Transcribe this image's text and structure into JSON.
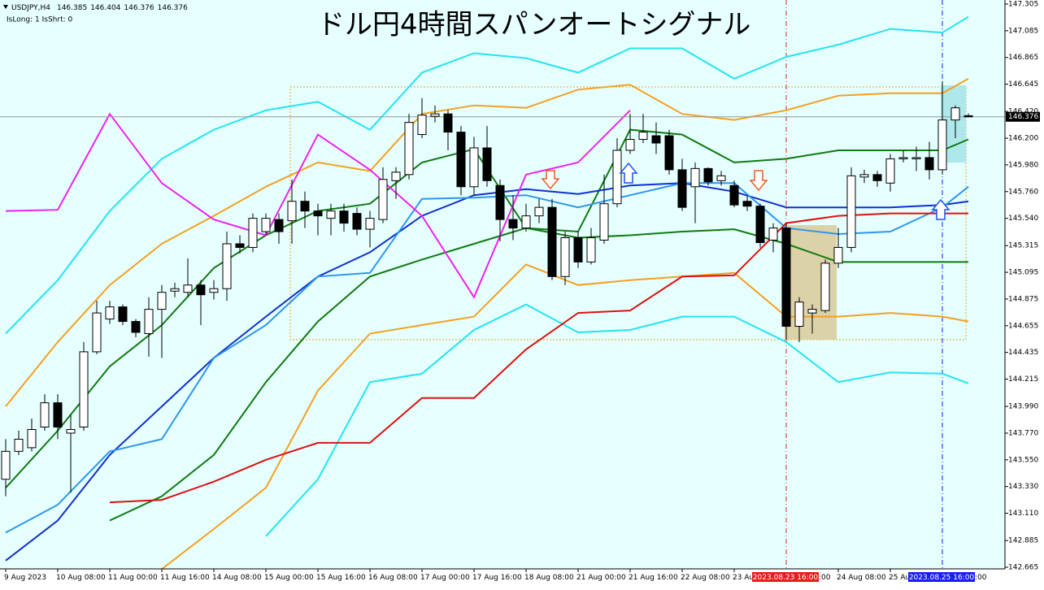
{
  "chart_data": {
    "type": "candlestick",
    "symbol": "USDJPY,H4",
    "status": "IsLong: 1 IsShrt: 0",
    "title": "ドル円4時間スパンオートシグナル",
    "categories": [
      "9 Aug 2023",
      null,
      null,
      null,
      "10 Aug 08:00",
      null,
      null,
      null,
      "11 Aug 00:00",
      null,
      null,
      null,
      "11 Aug 16:00",
      null,
      null,
      null,
      "14 Aug 08:00",
      null,
      null,
      null,
      "15 Aug 00:00",
      null,
      null,
      null,
      "15 Aug 16:00",
      null,
      null,
      null,
      "16 Aug 08:00",
      null,
      null,
      null,
      "17 Aug 00:00",
      null,
      null,
      null,
      "17 Aug 16:00",
      null,
      null,
      null,
      "18 Aug 08:00",
      null,
      null,
      null,
      "21 Aug 00:00",
      null,
      null,
      null,
      "21 Aug 16:00",
      null,
      null,
      null,
      "22 Aug 08:00",
      null,
      null,
      null,
      "23 Au",
      null,
      null,
      null,
      "2023.08.23 16:00",
      null,
      null,
      null,
      "24 Aug 08:00",
      null,
      null,
      null,
      "25 Au",
      null,
      null,
      null,
      "2023.08.25 16:00",
      null,
      null
    ],
    "vlines": [
      {
        "at": 60,
        "color": "#e81c1c"
      },
      {
        "at": 72,
        "color": "#1a1aff"
      }
    ],
    "tails": [
      ":00",
      ":00"
    ],
    "open": [
      143.39,
      143.62,
      143.65,
      143.82,
      144.02,
      143.77,
      143.82,
      144.44,
      144.71,
      144.81,
      144.69,
      144.59,
      144.79,
      144.94,
      144.93,
      144.99,
      144.93,
      144.96,
      145.33,
      145.3,
      145.43,
      145.53,
      145.52,
      145.68,
      145.6,
      145.54,
      145.6,
      145.58,
      145.45,
      145.53,
      145.85,
      145.9,
      146.23,
      146.38,
      146.4,
      146.25,
      145.8,
      146.12,
      145.81,
      145.53,
      145.46,
      145.56,
      145.63,
      145.06,
      145.38,
      145.18,
      145.36,
      145.66,
      146.1,
      146.19,
      146.22,
      146.22,
      145.94,
      145.8,
      145.95,
      145.85,
      145.81,
      145.68,
      145.64,
      145.36,
      145.46,
      144.65,
      144.76,
      144.78,
      145.17,
      145.3,
      145.88,
      145.9,
      145.83,
      146.03,
      146.03,
      146.04,
      145.94,
      146.35,
      146.385
    ],
    "high": [
      143.72,
      143.79,
      143.89,
      144.09,
      144.09,
      143.92,
      144.52,
      144.86,
      144.86,
      144.83,
      144.71,
      144.89,
      144.99,
      145.01,
      145.21,
      145.03,
      145.03,
      145.43,
      145.4,
      145.58,
      145.58,
      145.58,
      145.86,
      145.76,
      145.66,
      145.66,
      145.66,
      145.63,
      145.6,
      145.96,
      145.96,
      146.4,
      146.53,
      146.47,
      146.43,
      146.3,
      146.21,
      146.3,
      145.86,
      145.73,
      145.66,
      145.7,
      145.7,
      145.43,
      145.43,
      145.46,
      145.9,
      146.2,
      146.4,
      146.4,
      146.33,
      146.27,
      146.03,
      146.0,
      145.96,
      145.93,
      145.85,
      145.73,
      145.66,
      145.5,
      145.5,
      144.89,
      144.83,
      145.2,
      145.46,
      145.96,
      145.94,
      145.93,
      146.07,
      146.1,
      146.13,
      146.17,
      146.67,
      146.47,
      146.404
    ],
    "low": [
      143.25,
      143.59,
      143.62,
      143.79,
      143.72,
      143.28,
      143.79,
      144.42,
      144.67,
      144.66,
      144.56,
      144.4,
      144.39,
      144.89,
      144.89,
      144.66,
      144.87,
      144.86,
      145.25,
      145.26,
      145.4,
      145.33,
      145.33,
      145.46,
      145.4,
      145.4,
      145.43,
      145.4,
      145.3,
      145.5,
      145.7,
      145.86,
      146.2,
      146.33,
      146.1,
      145.73,
      145.73,
      145.8,
      145.35,
      145.36,
      145.43,
      145.5,
      145.03,
      144.99,
      145.13,
      145.16,
      145.33,
      145.63,
      146.07,
      146.16,
      146.07,
      145.9,
      145.6,
      145.5,
      145.81,
      145.81,
      145.63,
      145.6,
      145.3,
      145.26,
      144.54,
      144.52,
      144.59,
      144.76,
      145.13,
      145.26,
      145.83,
      145.8,
      145.76,
      146.0,
      145.93,
      145.86,
      145.9,
      146.2,
      146.376
    ],
    "close": [
      143.62,
      143.72,
      143.8,
      144.02,
      143.82,
      143.8,
      144.44,
      144.76,
      144.81,
      144.69,
      144.6,
      144.79,
      144.93,
      144.96,
      144.99,
      144.91,
      144.96,
      145.33,
      145.3,
      145.54,
      145.54,
      145.43,
      145.68,
      145.6,
      145.56,
      145.6,
      145.5,
      145.45,
      145.54,
      145.86,
      145.92,
      146.33,
      146.39,
      146.4,
      146.25,
      145.8,
      146.12,
      145.85,
      145.53,
      145.46,
      145.56,
      145.63,
      145.06,
      145.38,
      145.18,
      145.38,
      145.66,
      146.1,
      146.19,
      146.25,
      146.16,
      145.94,
      145.63,
      145.95,
      145.84,
      145.89,
      145.65,
      145.64,
      145.34,
      145.46,
      144.65,
      144.85,
      144.79,
      145.17,
      145.3,
      145.89,
      145.9,
      145.85,
      146.03,
      146.04,
      146.04,
      145.94,
      146.35,
      146.45,
      146.376
    ],
    "up_color": "#ffffff",
    "down_color": "#000000",
    "series": [
      {
        "color": "#22e5f0",
        "x": [
          0,
          4,
          8,
          12,
          16,
          20,
          24,
          28,
          32,
          36,
          40,
          44,
          48,
          52,
          56,
          60,
          64,
          68,
          72,
          74
        ],
        "values": [
          144.59,
          145.03,
          145.6,
          146.03,
          146.27,
          146.43,
          146.5,
          146.27,
          146.74,
          146.9,
          146.86,
          146.74,
          146.94,
          146.94,
          146.69,
          146.87,
          146.97,
          147.1,
          147.07,
          147.2
        ]
      },
      {
        "color": "#22e5f0",
        "x": [
          0,
          4,
          8,
          12,
          16,
          20,
          24,
          28,
          32,
          36,
          40,
          44,
          48,
          52,
          56,
          60,
          64,
          68,
          72,
          74
        ],
        "values": [
          null,
          null,
          null,
          null,
          null,
          142.92,
          143.39,
          144.19,
          144.26,
          144.62,
          144.83,
          144.6,
          144.62,
          144.73,
          144.73,
          144.52,
          144.19,
          144.27,
          144.26,
          144.18
        ]
      },
      {
        "color": "#f5a020",
        "x": [
          0,
          4,
          8,
          12,
          16,
          20,
          24,
          28,
          32,
          36,
          40,
          44,
          48,
          52,
          56,
          60,
          64,
          68,
          72,
          74
        ],
        "values": [
          143.99,
          144.52,
          144.99,
          145.33,
          145.56,
          145.8,
          146.0,
          145.93,
          146.4,
          146.47,
          146.45,
          146.6,
          146.64,
          146.4,
          146.35,
          146.43,
          146.55,
          146.57,
          146.57,
          146.69
        ]
      },
      {
        "color": "#f5a020",
        "x": [
          0,
          4,
          8,
          12,
          16,
          20,
          24,
          28,
          32,
          36,
          40,
          44,
          48,
          52,
          56,
          60,
          64,
          68,
          72,
          74
        ],
        "values": [
          null,
          null,
          null,
          142.65,
          142.98,
          143.32,
          144.12,
          144.59,
          144.66,
          144.73,
          145.16,
          144.99,
          145.03,
          145.06,
          145.09,
          144.73,
          144.73,
          144.76,
          144.73,
          144.69
        ]
      },
      {
        "color": "#107a10",
        "x": [
          0,
          4,
          8,
          12,
          16,
          20,
          24,
          28,
          32,
          36,
          40,
          44,
          48,
          52,
          56,
          60,
          64,
          68,
          72,
          74
        ],
        "values": [
          143.32,
          143.79,
          144.32,
          144.66,
          145.13,
          145.4,
          145.6,
          145.66,
          146.0,
          146.11,
          145.46,
          145.43,
          146.27,
          146.23,
          146.0,
          146.03,
          146.1,
          146.1,
          146.1,
          146.19
        ]
      },
      {
        "color": "#107a10",
        "x": [
          0,
          4,
          8,
          12,
          16,
          20,
          24,
          28,
          32,
          36,
          40,
          44,
          48,
          52,
          56,
          60,
          64,
          68,
          72,
          74
        ],
        "values": [
          null,
          null,
          143.05,
          143.25,
          143.59,
          144.19,
          144.69,
          145.06,
          145.2,
          145.33,
          145.46,
          145.38,
          145.4,
          145.43,
          145.45,
          145.33,
          145.18,
          145.18,
          145.18,
          145.18
        ]
      },
      {
        "color": "#1030d0",
        "x": [
          0,
          4,
          8,
          12,
          16,
          20,
          24,
          28,
          32,
          36,
          40,
          44,
          48,
          52,
          56,
          60,
          64,
          68,
          72,
          74
        ],
        "values": [
          142.72,
          143.05,
          143.59,
          143.99,
          144.39,
          144.73,
          145.06,
          145.26,
          145.56,
          145.73,
          145.78,
          145.74,
          145.81,
          145.83,
          145.76,
          145.63,
          145.63,
          145.63,
          145.65,
          145.68
        ]
      },
      {
        "color": "#2e96ee",
        "x": [
          0,
          4,
          8,
          12,
          16,
          20,
          24,
          28,
          32,
          36,
          40,
          44,
          48,
          52,
          56,
          60,
          64,
          68,
          72,
          74
        ],
        "values": [
          142.95,
          143.18,
          143.62,
          143.72,
          144.39,
          144.66,
          145.06,
          145.09,
          145.7,
          145.71,
          145.73,
          145.63,
          145.73,
          145.83,
          145.83,
          145.46,
          145.41,
          145.43,
          145.63,
          145.8
        ]
      },
      {
        "color": "#e01010",
        "x": [
          0,
          4,
          8,
          12,
          16,
          20,
          24,
          28,
          32,
          36,
          40,
          44,
          48,
          52,
          56,
          60,
          64,
          68,
          72,
          74
        ],
        "values": [
          null,
          null,
          143.2,
          143.22,
          143.37,
          143.55,
          143.69,
          143.69,
          144.06,
          144.06,
          144.46,
          144.76,
          144.78,
          145.06,
          145.07,
          145.5,
          145.56,
          145.58,
          145.58,
          145.58
        ]
      },
      {
        "color": "#ee22ee",
        "x": [
          0,
          4,
          8,
          12,
          16,
          20,
          24,
          28,
          32,
          36,
          40,
          44,
          48,
          52,
          56,
          60,
          64,
          68,
          72,
          74
        ],
        "values": [
          145.6,
          145.61,
          146.4,
          145.83,
          145.53,
          145.4,
          146.23,
          145.94,
          145.56,
          144.89,
          145.9,
          146.0,
          146.43,
          null,
          null,
          null,
          null,
          null,
          null,
          null
        ]
      }
    ],
    "ylim": [
      142.665,
      147.305
    ],
    "yticks": [
      147.305,
      147.085,
      146.865,
      146.645,
      {
        "value": 146.42,
        "label": "146.420"
      },
      {
        "value": 146.2,
        "label": "146.200"
      },
      {
        "value": 145.98,
        "label": "145.980"
      },
      {
        "value": 145.76,
        "label": "145.760"
      },
      {
        "value": 145.54,
        "label": "145.540"
      },
      145.315,
      145.095,
      144.875,
      144.655,
      144.435,
      144.215,
      {
        "value": 143.99,
        "label": "143.990"
      },
      {
        "value": 143.77,
        "label": "143.770"
      },
      {
        "value": 143.55,
        "label": "143.550"
      },
      {
        "value": 143.33,
        "label": "143.330"
      },
      {
        "value": 143.11,
        "label": "143.110"
      },
      142.885,
      142.665
    ]
  }
}
